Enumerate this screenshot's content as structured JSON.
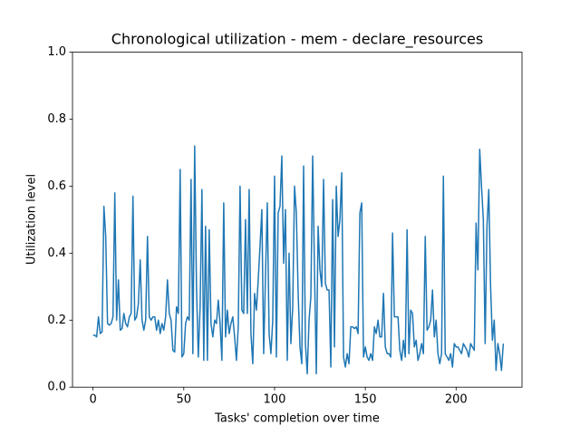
{
  "chart_data": {
    "type": "line",
    "title": "Chronological utilization - mem - declare_resources",
    "x_label": "Tasks' completion over time",
    "y_label": "Utilization level",
    "xlim": [
      -11.3,
      236.3
    ],
    "xticks": [
      0,
      50,
      100,
      150,
      200
    ],
    "ylim": [
      0,
      1
    ],
    "yticks": [
      {
        "value": 0,
        "label": "0.0"
      },
      0.2,
      0.4,
      0.6,
      0.8,
      {
        "value": 1,
        "label": "1.0"
      }
    ],
    "grid": false,
    "series": [
      {
        "color": "#1f77b4",
        "values": [
          0.155,
          0.155,
          0.15,
          0.21,
          0.16,
          0.165,
          0.54,
          0.45,
          0.19,
          0.185,
          0.19,
          0.21,
          0.58,
          0.2,
          0.32,
          0.17,
          0.175,
          0.22,
          0.19,
          0.18,
          0.21,
          0.22,
          0.57,
          0.2,
          0.21,
          0.25,
          0.38,
          0.2,
          0.17,
          0.2,
          0.45,
          0.21,
          0.2,
          0.21,
          0.21,
          0.17,
          0.2,
          0.16,
          0.19,
          0.17,
          0.21,
          0.32,
          0.22,
          0.2,
          0.11,
          0.105,
          0.24,
          0.22,
          0.65,
          0.09,
          0.1,
          0.19,
          0.21,
          0.2,
          0.62,
          0.1,
          0.72,
          0.3,
          0.09,
          0.24,
          0.59,
          0.08,
          0.48,
          0.08,
          0.47,
          0.19,
          0.15,
          0.2,
          0.19,
          0.26,
          0.19,
          0.08,
          0.55,
          0.15,
          0.23,
          0.16,
          0.19,
          0.21,
          0.15,
          0.08,
          0.18,
          0.6,
          0.23,
          0.22,
          0.5,
          0.22,
          0.59,
          0.16,
          0.07,
          0.28,
          0.23,
          0.32,
          0.42,
          0.53,
          0.1,
          0.33,
          0.55,
          0.16,
          0.1,
          0.2,
          0.63,
          0.09,
          0.52,
          0.54,
          0.69,
          0.37,
          0.53,
          0.08,
          0.4,
          0.13,
          0.24,
          0.6,
          0.52,
          0.28,
          0.12,
          0.07,
          0.66,
          0.13,
          0.04,
          0.2,
          0.27,
          0.69,
          0.35,
          0.04,
          0.48,
          0.35,
          0.3,
          0.62,
          0.31,
          0.29,
          0.29,
          0.06,
          0.56,
          0.12,
          0.6,
          0.45,
          0.5,
          0.64,
          0.09,
          0.06,
          0.1,
          0.07,
          0.18,
          0.18,
          0.175,
          0.18,
          0.16,
          0.52,
          0.55,
          0.09,
          0.12,
          0.09,
          0.08,
          0.1,
          0.08,
          0.18,
          0.16,
          0.2,
          0.15,
          0.15,
          0.28,
          0.12,
          0.1,
          0.1,
          0.09,
          0.46,
          0.21,
          0.21,
          0.21,
          0.11,
          0.08,
          0.14,
          0.09,
          0.47,
          0.1,
          0.23,
          0.22,
          0.12,
          0.14,
          0.08,
          0.1,
          0.13,
          0.1,
          0.45,
          0.17,
          0.18,
          0.2,
          0.29,
          0.15,
          0.2,
          0.1,
          0.07,
          0.1,
          0.63,
          0.1,
          0.09,
          0.08,
          0.1,
          0.06,
          0.13,
          0.12,
          0.12,
          0.11,
          0.1,
          0.13,
          0.12,
          0.11,
          0.09,
          0.13,
          0.12,
          0.11,
          0.49,
          0.35,
          0.71,
          0.6,
          0.5,
          0.13,
          0.48,
          0.59,
          0.3,
          0.14,
          0.2,
          0.05,
          0.13,
          0.1,
          0.05,
          0.13
        ]
      }
    ]
  }
}
